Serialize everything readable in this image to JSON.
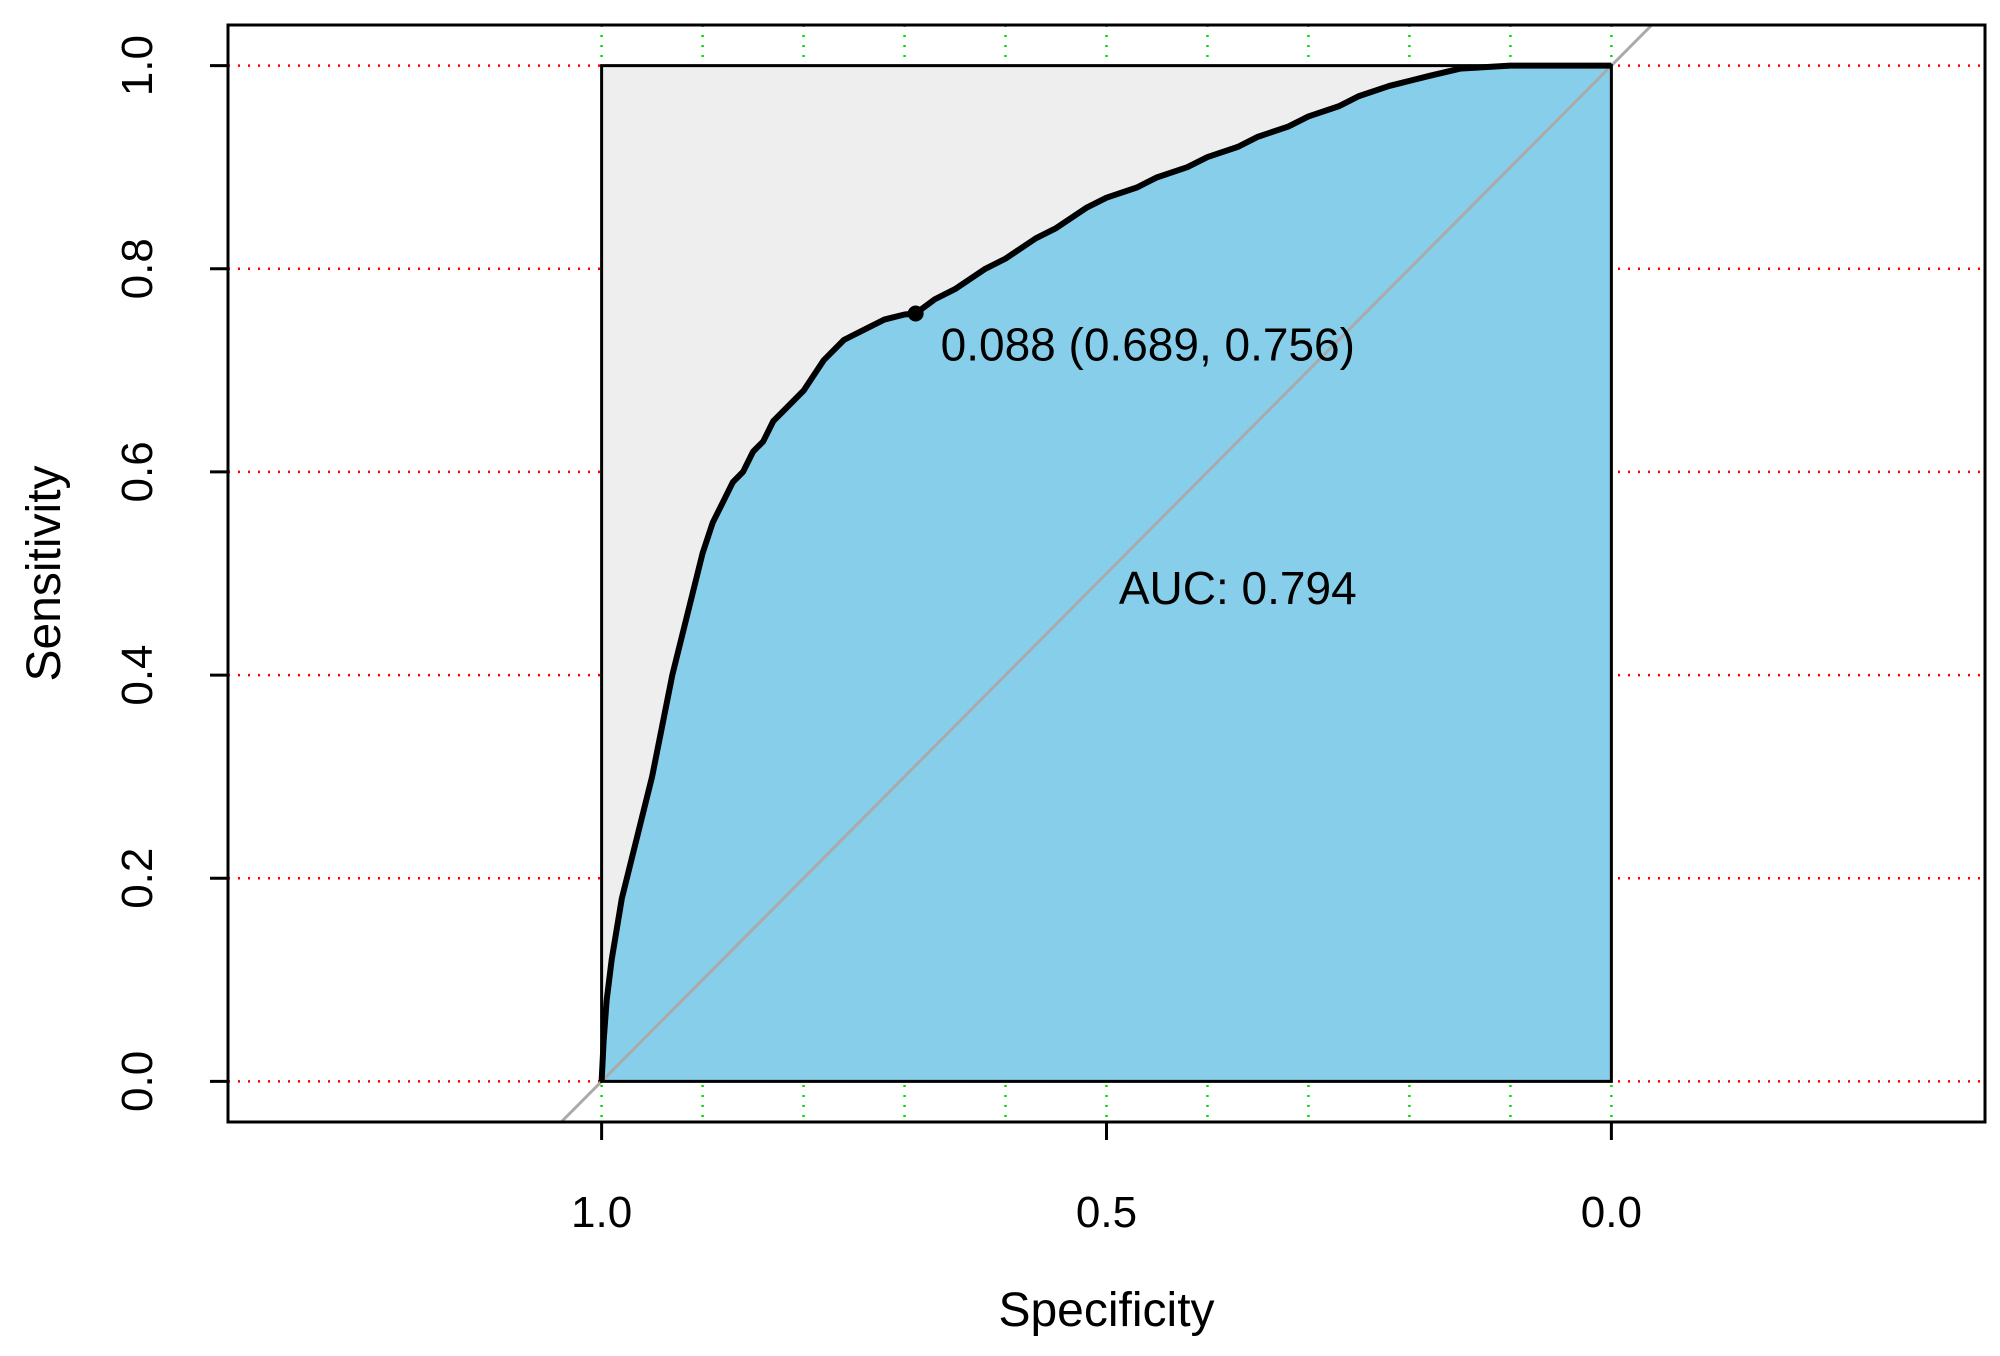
{
  "chart_data": {
    "type": "line",
    "subtype": "roc",
    "xlabel": "Specificity",
    "ylabel": "Sensitivity",
    "x_reversed": true,
    "xlim": [
      1.37,
      -0.37
    ],
    "ylim": [
      -0.04,
      1.04
    ],
    "x_ticks": [
      1.0,
      0.5,
      0.0
    ],
    "x_tick_labels": [
      "1.0",
      "0.5",
      "0.0"
    ],
    "y_ticks": [
      0.0,
      0.2,
      0.4,
      0.6,
      0.8,
      1.0
    ],
    "y_tick_labels": [
      "0.0",
      "0.2",
      "0.4",
      "0.6",
      "0.8",
      "1.0"
    ],
    "grid": {
      "horizontal": {
        "values": [
          0.0,
          0.2,
          0.4,
          0.6,
          0.8,
          1.0
        ],
        "color": "#ff0000",
        "style": "dotted"
      },
      "vertical": {
        "values": [
          1.0,
          0.9,
          0.8,
          0.7,
          0.6,
          0.5,
          0.4,
          0.3,
          0.2,
          0.1,
          0.0
        ],
        "color": "#00dd00",
        "style": "dotted"
      }
    },
    "series": [
      {
        "x": [
          1.0,
          0.998,
          0.995,
          0.99,
          0.985,
          0.98,
          0.975,
          0.97,
          0.96,
          0.95,
          0.94,
          0.93,
          0.92,
          0.91,
          0.9,
          0.89,
          0.88,
          0.87,
          0.86,
          0.85,
          0.84,
          0.83,
          0.82,
          0.8,
          0.78,
          0.76,
          0.74,
          0.72,
          0.7,
          0.689,
          0.67,
          0.65,
          0.62,
          0.6,
          0.57,
          0.55,
          0.52,
          0.5,
          0.47,
          0.45,
          0.42,
          0.4,
          0.37,
          0.35,
          0.32,
          0.3,
          0.27,
          0.25,
          0.22,
          0.2,
          0.18,
          0.15,
          0.1,
          0.05,
          0.0
        ],
        "y": [
          0.0,
          0.04,
          0.08,
          0.12,
          0.15,
          0.18,
          0.2,
          0.22,
          0.26,
          0.3,
          0.35,
          0.4,
          0.44,
          0.48,
          0.52,
          0.55,
          0.57,
          0.59,
          0.6,
          0.62,
          0.63,
          0.65,
          0.66,
          0.68,
          0.71,
          0.73,
          0.74,
          0.75,
          0.755,
          0.756,
          0.77,
          0.78,
          0.8,
          0.81,
          0.83,
          0.84,
          0.86,
          0.87,
          0.88,
          0.89,
          0.9,
          0.91,
          0.92,
          0.93,
          0.94,
          0.95,
          0.96,
          0.97,
          0.98,
          0.985,
          0.99,
          0.997,
          1.0,
          1.0,
          1.0
        ],
        "color": "#000000",
        "fill": "#87ceeb",
        "fill_complement": "#eeeeee"
      }
    ],
    "diagonal_color": "#aaaaaa",
    "threshold_point": {
      "x": 0.689,
      "y": 0.756,
      "label": "0.088 (0.689, 0.756)"
    },
    "auc_label": "AUC: 0.794"
  }
}
